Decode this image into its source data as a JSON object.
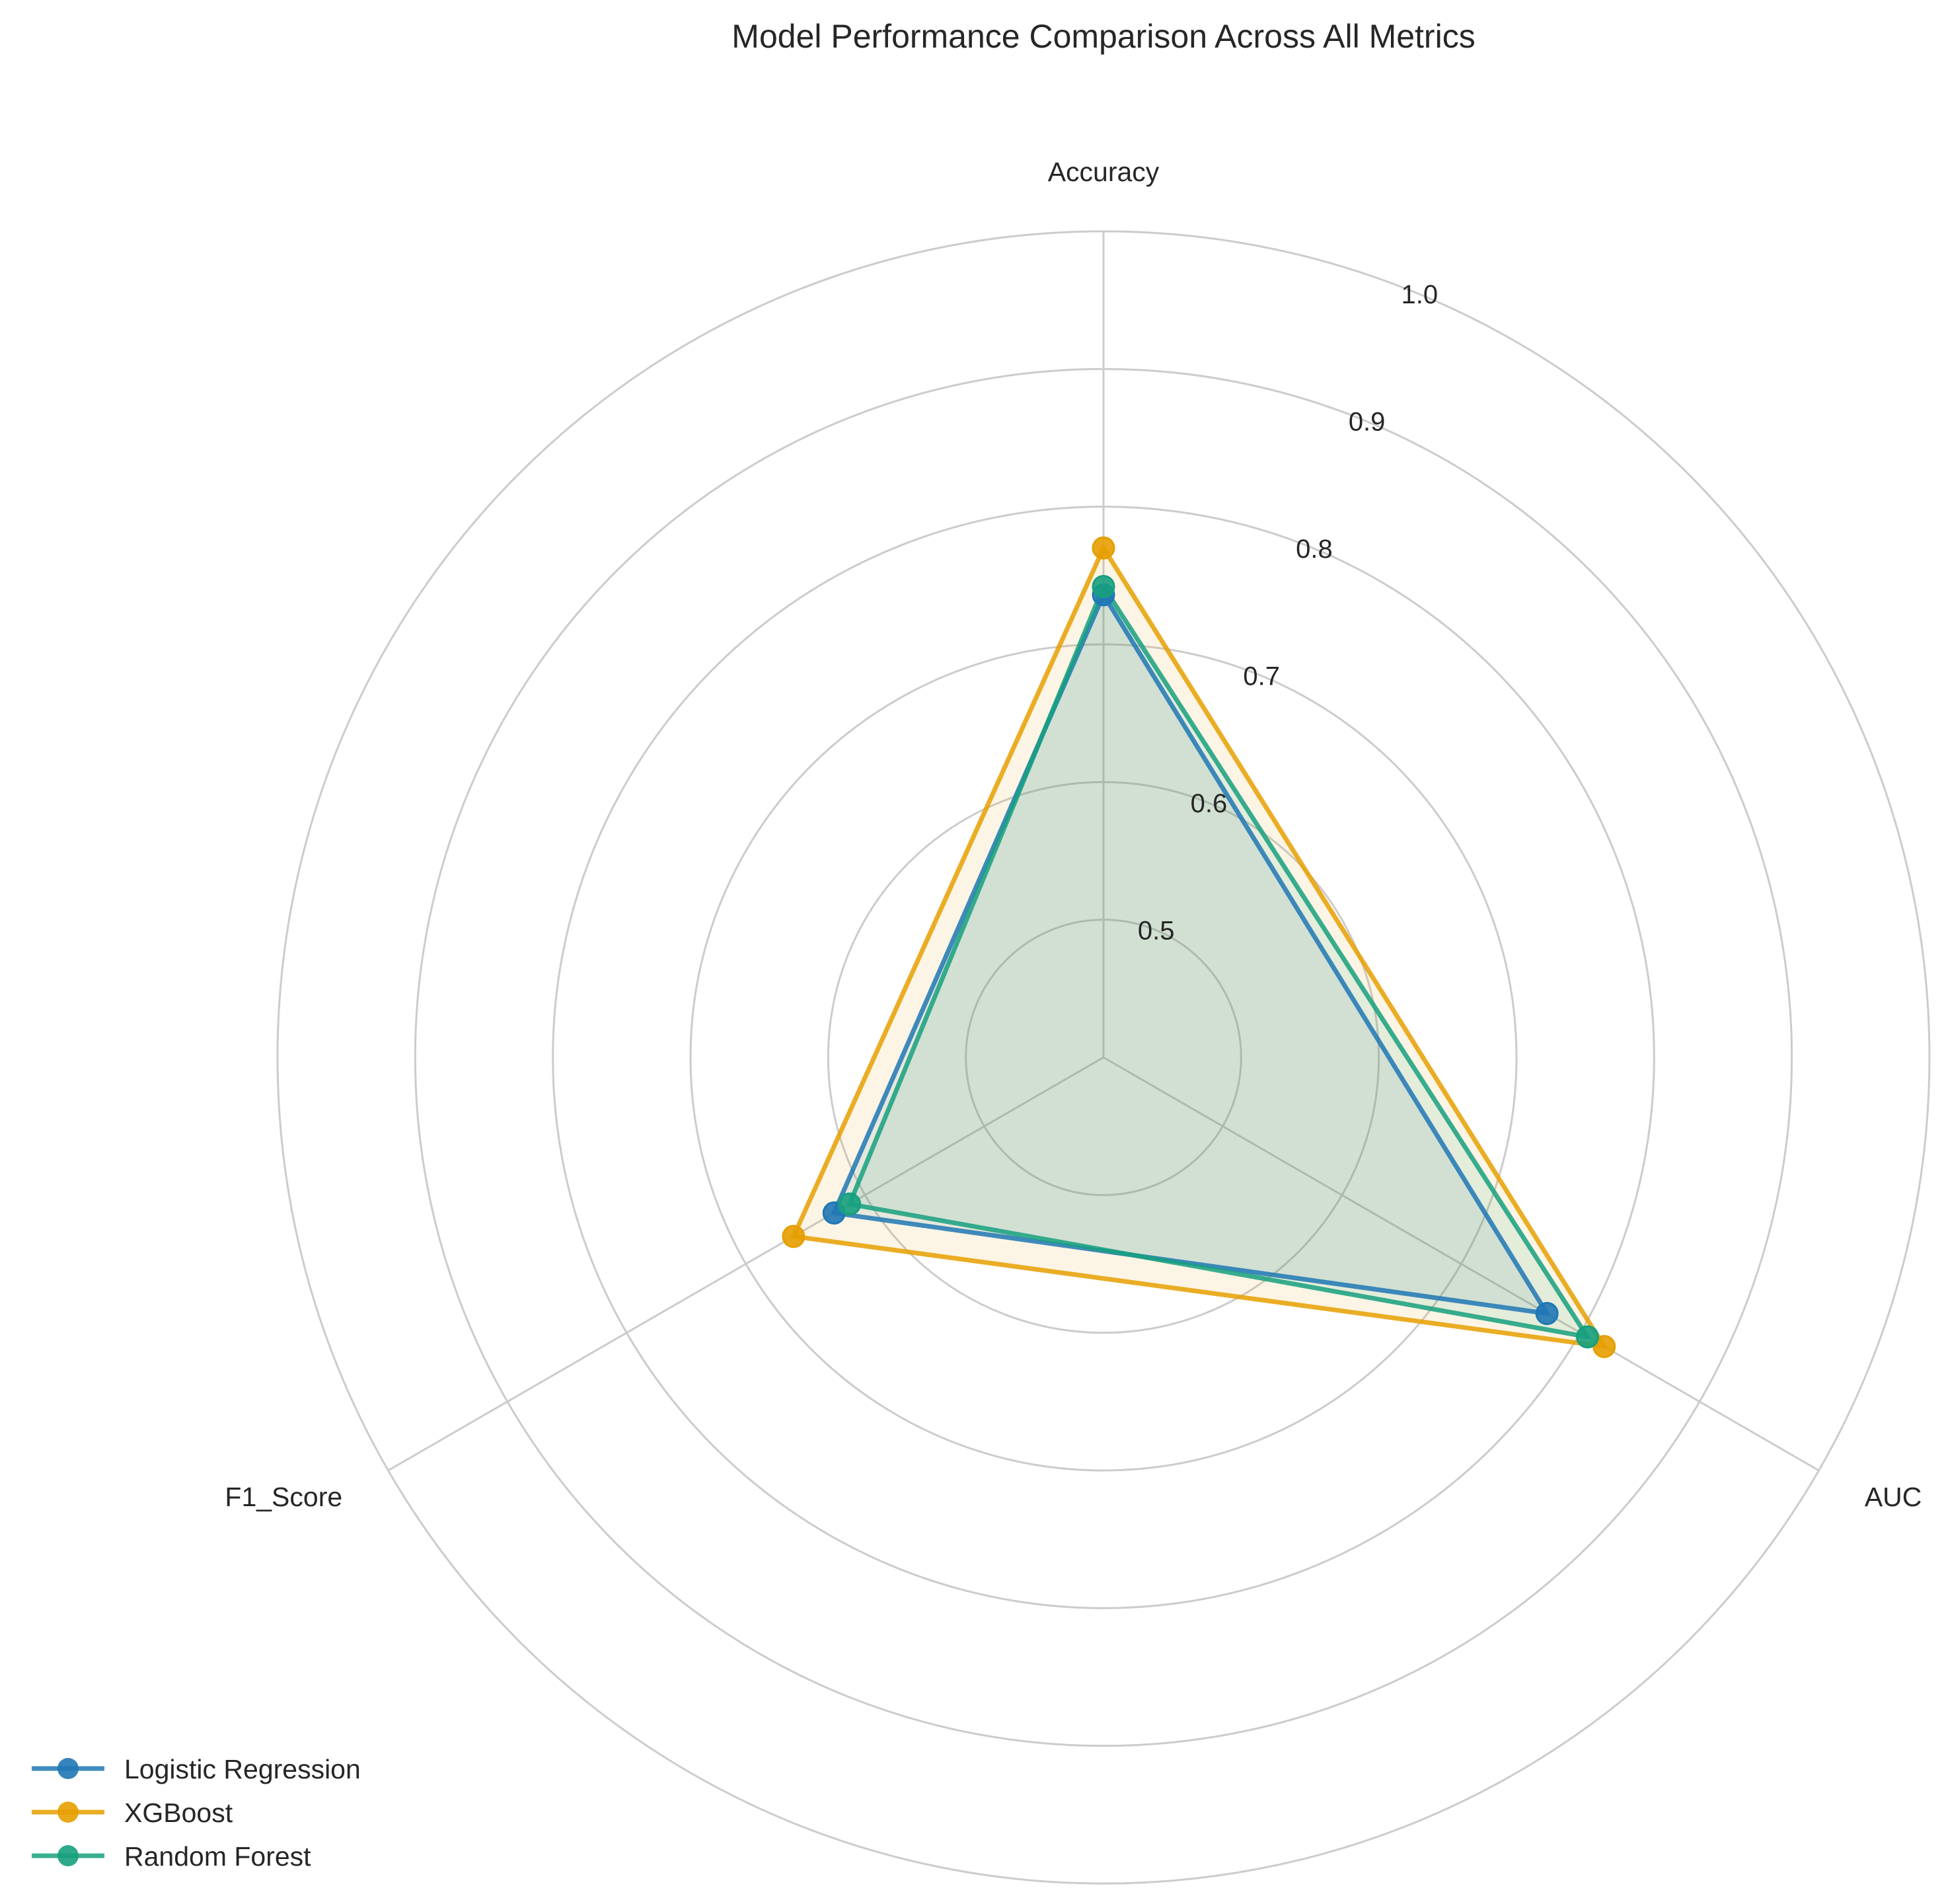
{
  "chart_data": {
    "type": "radar",
    "title": "Model Performance Comparison Across All Metrics",
    "axes": [
      "Accuracy",
      "AUC",
      "F1_Score"
    ],
    "r_range": [
      0.4,
      1.0
    ],
    "r_ticks": [
      0.5,
      0.6,
      0.7,
      0.8,
      0.9,
      1.0
    ],
    "r_tick_labels": [
      "0.5",
      "0.6",
      "0.7",
      "0.8",
      "0.9",
      "1.0"
    ],
    "grid": true,
    "legend_position": "lower-left",
    "series": [
      {
        "name": "Logistic Regression",
        "color": "#1f77b4",
        "values": [
          0.736,
          0.772,
          0.626
        ]
      },
      {
        "name": "XGBoost",
        "color": "#e69f00",
        "values": [
          0.77,
          0.82,
          0.66
        ]
      },
      {
        "name": "Random Forest",
        "color": "#16a07e",
        "values": [
          0.742,
          0.806,
          0.613
        ]
      }
    ]
  }
}
